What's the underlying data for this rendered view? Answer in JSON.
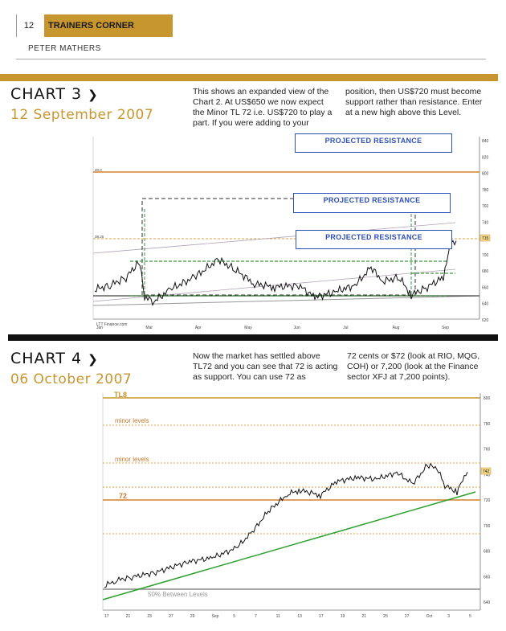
{
  "header": {
    "page_number": "12",
    "section": "TRAINERS CORNER",
    "author": "PETER MATHERS"
  },
  "chart3": {
    "heading": "CHART 3",
    "chevron": "❯",
    "date": "12 September 2007",
    "text_col1": "This shows an expanded view of the Chart 2. At US$650 we now expect the Minor TL 72 i.e. US$720 to play a part. If you were adding to your",
    "text_col2": "position, then US$720 must become support rather than resistance. Enter at a new high above this Level.",
    "projected_label_1": "PROJECTED RESISTANCE",
    "projected_label_2": "PROJECTED RESISTANCE",
    "projected_label_3": "PROJECTED RESISTANCE",
    "source": "LTT Finance.com",
    "level_labels": [
      "20.0",
      "38.25"
    ],
    "price_badge": "715",
    "y_ticks": [
      "840",
      "820",
      "800",
      "780",
      "760",
      "740",
      "720",
      "700",
      "680",
      "660",
      "640",
      "620"
    ],
    "x_ticks": [
      "Jan",
      "Mar",
      "Apr",
      "May",
      "Jun",
      "Jul",
      "Aug",
      "Sep"
    ]
  },
  "chart4": {
    "heading": "CHART 4",
    "chevron": "❯",
    "date": "06 October 2007",
    "text_col1": "Now the market has settled above TL72 and you can see that 72 is acting as support. You can use 72 as",
    "text_col2": "72 cents or $72 (look at RIO, MQG, COH) or 7,200 (look at the Finance sector XFJ at 7,200 points).",
    "label_tl8": "TL8",
    "label_minor_1": "minor levels",
    "label_minor_2": "minor levels",
    "label_72": "72",
    "label_50pct": "50% Between Levels",
    "price_badge": "742",
    "y_ticks": [
      "800",
      "780",
      "760",
      "740",
      "720",
      "700",
      "680",
      "660",
      "640"
    ],
    "x_ticks": [
      "17",
      "21",
      "23",
      "27",
      "29",
      "Sep",
      "5",
      "7",
      "11",
      "13",
      "17",
      "19",
      "21",
      "25",
      "27",
      "Oct",
      "3",
      "5"
    ]
  },
  "colors": {
    "gold": "#c8962e",
    "orange_line": "#d9802a",
    "green_dash": "#3a9a3a",
    "blue_box": "#2e4fb5",
    "trend_green": "#2ea02e"
  }
}
